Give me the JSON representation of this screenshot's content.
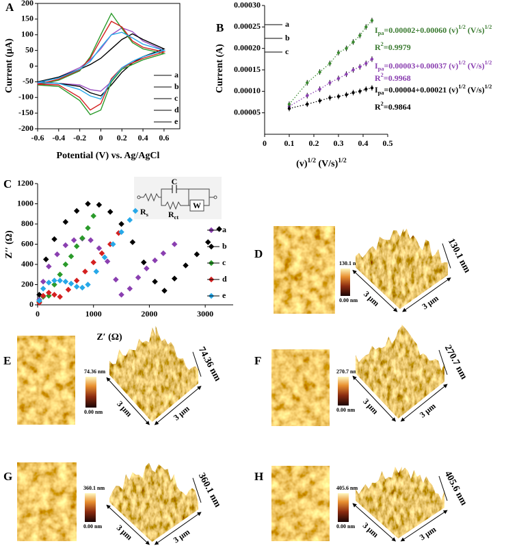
{
  "chart_data": [
    {
      "type": "line",
      "panel": "A",
      "box": true,
      "legend": "lower right",
      "xlabel": "Potential (V) vs. Ag/AgCl",
      "ylabel": "Current (µA)",
      "x": [
        -0.6,
        -0.4,
        -0.2,
        -0.1,
        0,
        0.1,
        0.2,
        0.3,
        0.4,
        0.6,
        0.6,
        0.4,
        0.3,
        0.2,
        0.1,
        0,
        -0.1,
        -0.2,
        -0.4,
        -0.6
      ],
      "series": [
        {
          "name": "a",
          "color": "#9b4fc0",
          "values": [
            -55,
            -35,
            -5,
            20,
            55,
            100,
            122,
            110,
            80,
            50,
            50,
            30,
            15,
            -10,
            -50,
            -80,
            -75,
            -60,
            -55,
            -55
          ]
        },
        {
          "name": "b",
          "color": "#000000",
          "values": [
            -50,
            -35,
            -10,
            5,
            25,
            55,
            85,
            103,
            85,
            55,
            55,
            30,
            10,
            -20,
            -60,
            -95,
            -85,
            -65,
            -55,
            -50
          ]
        },
        {
          "name": "c",
          "color": "#2a9a2a",
          "values": [
            -60,
            -45,
            -15,
            30,
            100,
            168,
            120,
            75,
            55,
            40,
            40,
            20,
            5,
            -10,
            -50,
            -140,
            -155,
            -110,
            -65,
            -60
          ]
        },
        {
          "name": "d",
          "color": "#d42020",
          "values": [
            -58,
            -42,
            -12,
            25,
            85,
            143,
            125,
            80,
            60,
            45,
            45,
            25,
            10,
            -5,
            -40,
            -120,
            -140,
            -100,
            -60,
            -58
          ]
        },
        {
          "name": "e",
          "color": "#27a8e8",
          "values": [
            -52,
            -38,
            -10,
            15,
            60,
            100,
            108,
            90,
            70,
            50,
            50,
            30,
            15,
            -5,
            -45,
            -105,
            -95,
            -75,
            -55,
            -52
          ]
        }
      ],
      "xlim": [
        -0.6,
        0.75
      ],
      "xticks": [
        -0.6,
        -0.4,
        -0.2,
        0,
        0.2,
        0.4,
        0.6
      ],
      "ylim": [
        -200,
        200
      ],
      "yticks": [
        -200,
        -150,
        -100,
        -50,
        0,
        50,
        100,
        150,
        200
      ]
    },
    {
      "type": "scatter",
      "panel": "B",
      "legend": "upper left",
      "marker": "circle",
      "line_style": "dotted",
      "xlabel": {
        "parts": [
          "(v)",
          "1/2",
          " (V/s)",
          "1/2"
        ],
        "styles": [
          "",
          "sup",
          "",
          "sup"
        ]
      },
      "ylabel": "Current (A)",
      "x": [
        0.1,
        0.173,
        0.224,
        0.265,
        0.3,
        0.332,
        0.36,
        0.387,
        0.412,
        0.436
      ],
      "series": [
        {
          "name": "a",
          "color": "#8a3fb0",
          "values": [
            6.5e-05,
            9e-05,
            0.000105,
            0.00012,
            0.00013,
            0.00014,
            0.00015,
            0.000157,
            0.000165,
            0.000175
          ]
        },
        {
          "name": "b",
          "color": "#000000",
          "values": [
            6e-05,
            7e-05,
            7.8e-05,
            8.5e-05,
            8.8e-05,
            9.2e-05,
            9.7e-05,
            0.0001,
            0.000105,
            0.000108
          ]
        },
        {
          "name": "c",
          "color": "#3a8a30",
          "values": [
            7e-05,
            0.00012,
            0.000145,
            0.000165,
            0.00019,
            0.0002,
            0.000215,
            0.00023,
            0.00025,
            0.000265
          ]
        }
      ],
      "annotations": [
        {
          "color": "#3a7a30",
          "parts": [
            "I",
            "pa",
            "=0.00002+0.00060 (v)",
            "1/2",
            " (V/s)",
            "1/2"
          ],
          "styles": [
            "",
            "sub",
            "",
            "sup",
            "",
            "sup"
          ]
        },
        {
          "color": "#3a7a30",
          "parts": [
            "R",
            "2",
            "=0.9979"
          ],
          "styles": [
            "",
            "sup",
            ""
          ]
        },
        {
          "color": "#8a3fb0",
          "parts": [
            "I",
            "pa",
            "=0.00003+0.00037 (v)",
            "1/2",
            " (V/s)",
            "1/2"
          ],
          "styles": [
            "",
            "sub",
            "",
            "sup",
            "",
            "sup"
          ]
        },
        {
          "color": "#8a3fb0",
          "parts": [
            "R",
            "2",
            "=0.9968"
          ],
          "styles": [
            "",
            "sup",
            ""
          ]
        },
        {
          "color": "#000000",
          "parts": [
            "I",
            "pa",
            "=0.00004+0.00021 (v)",
            "1/2",
            " (V/s)",
            "1/2"
          ],
          "styles": [
            "",
            "sub",
            "",
            "sup",
            "",
            "sup"
          ]
        },
        {
          "color": "#000000",
          "parts": [
            "R",
            "2",
            "=0.9864"
          ],
          "styles": [
            "",
            "sup",
            ""
          ]
        }
      ],
      "xlim": [
        0,
        0.5
      ],
      "xticks": [
        0,
        0.1,
        0.2,
        0.3,
        0.4,
        0.5
      ],
      "ylim": [
        0,
        0.0003
      ],
      "yticks": [
        5e-05,
        {
          "value": 0.0001,
          "label": "0.00010"
        },
        0.00015,
        {
          "value": 0.0002,
          "label": "0.00020"
        },
        0.00025,
        {
          "value": 0.0003,
          "label": "0.00030"
        }
      ]
    },
    {
      "type": "scatter",
      "panel": "C",
      "legend": "lower right",
      "marker": "diamond",
      "xlabel": "Z′ (Ω)",
      "ylabel": "Z′′ (Ω)",
      "circuit": {
        "c": "C",
        "rs": {
          "parts": [
            "R",
            "s"
          ],
          "styles": [
            "",
            "sub"
          ]
        },
        "rct": {
          "parts": [
            "R",
            "ct"
          ],
          "styles": [
            "",
            "sub"
          ]
        },
        "w": "W"
      },
      "series": [
        {
          "name": "a",
          "color": "#8a3fb0",
          "x": [
            30,
            100,
            200,
            350,
            500,
            650,
            800,
            950,
            1100,
            1250,
            1400,
            1500,
            1650,
            1800,
            1950,
            2100,
            2250,
            2450
          ],
          "values": [
            50,
            230,
            380,
            500,
            590,
            640,
            655,
            640,
            560,
            430,
            250,
            100,
            160,
            270,
            360,
            440,
            510,
            600
          ]
        },
        {
          "name": "b",
          "color": "#000000",
          "x": [
            30,
            150,
            300,
            500,
            700,
            900,
            1100,
            1300,
            1500,
            1700,
            1900,
            2100,
            2270,
            2450,
            2650,
            2850,
            3050,
            3250
          ],
          "values": [
            100,
            450,
            650,
            820,
            930,
            1000,
            990,
            920,
            800,
            620,
            420,
            230,
            140,
            260,
            390,
            500,
            620,
            750
          ]
        },
        {
          "name": "c",
          "color": "#2a9a2a",
          "x": [
            30,
            100,
            200,
            300,
            400,
            500,
            600,
            700,
            800,
            900,
            1000
          ],
          "values": [
            30,
            80,
            90,
            200,
            300,
            400,
            480,
            580,
            660,
            760,
            880
          ]
        },
        {
          "name": "d",
          "color": "#d42020",
          "x": [
            30,
            100,
            200,
            300,
            400,
            550,
            700,
            850,
            1000,
            1150,
            1300,
            1450
          ],
          "values": [
            20,
            90,
            120,
            100,
            80,
            150,
            240,
            330,
            420,
            510,
            600,
            710
          ]
        },
        {
          "name": "e",
          "color": "#27a8e8",
          "x": [
            30,
            100,
            200,
            300,
            400,
            500,
            600,
            700,
            800,
            900,
            1050,
            1200,
            1350,
            1500,
            1650,
            1750
          ],
          "values": [
            40,
            160,
            220,
            240,
            240,
            230,
            210,
            180,
            170,
            200,
            330,
            470,
            600,
            720,
            840,
            930
          ]
        }
      ],
      "xlim": [
        0,
        3500
      ],
      "xticks": [
        0,
        1000,
        2000,
        3000
      ],
      "ylim": [
        0,
        1200
      ],
      "yticks": [
        0,
        200,
        400,
        600,
        800,
        1000,
        1200
      ]
    }
  ],
  "afm_panels": [
    {
      "panel": "D",
      "max": "130.1 nm",
      "min": "0.00 nm",
      "size": "3 μm"
    },
    {
      "panel": "E",
      "max": "74.36 nm",
      "min": "0.00 nm",
      "size": "3 μm"
    },
    {
      "panel": "F",
      "max": "270.7 nm",
      "min": "0.00 nm",
      "size": "3 μm"
    },
    {
      "panel": "G",
      "max": "360.1 nm",
      "min": "0.00 nm",
      "size": "3 μm"
    },
    {
      "panel": "H",
      "max": "405.6 nm",
      "min": "0.00 nm",
      "size": "3 μm"
    }
  ]
}
